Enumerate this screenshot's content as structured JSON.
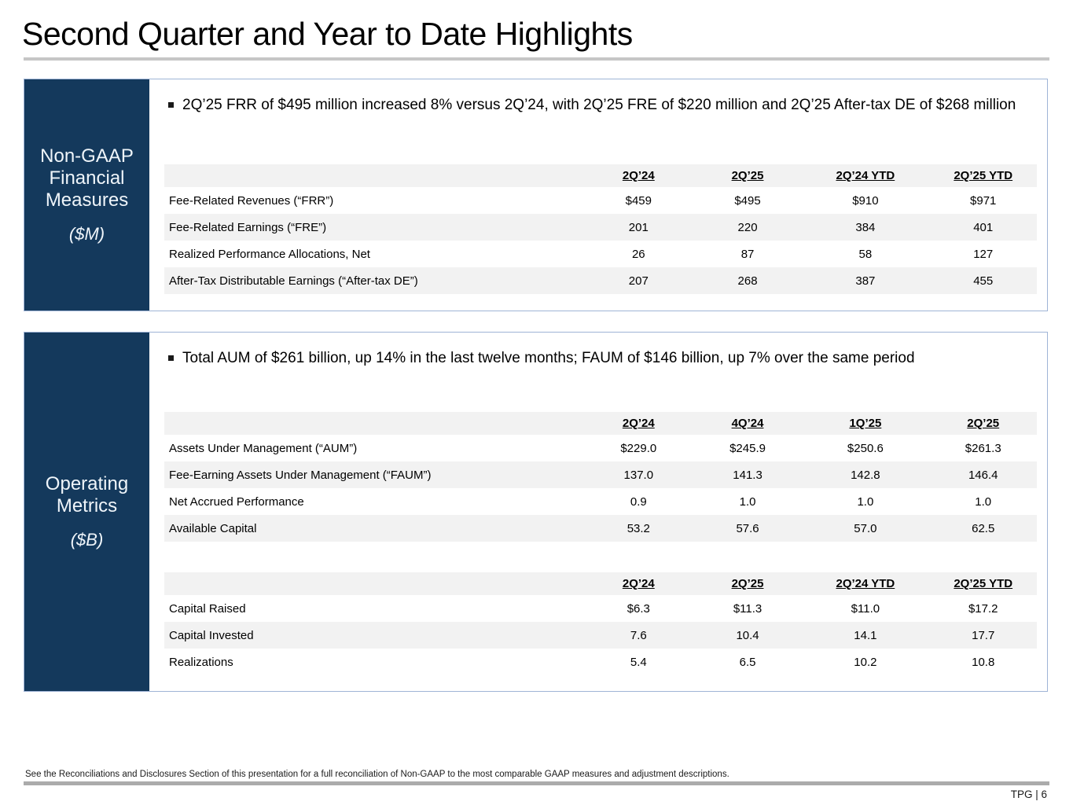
{
  "slide": {
    "title": "Second Quarter and Year to Date Highlights",
    "footnote": "See the Reconciliations and Disclosures Section of this presentation for a full reconciliation of Non-GAAP to the most comparable GAAP measures and adjustment descriptions.",
    "page_label": "TPG | 6"
  },
  "colors": {
    "navy_sidebar": "#14395C",
    "panel_border": "#9FB4D6",
    "row_stripe": "#F2F2F2",
    "divider_gray": "#C6C6C6"
  },
  "sections": [
    {
      "label_lines": [
        "Non-GAAP",
        "Financial",
        "Measures"
      ],
      "unit": "($M)",
      "bullet": "2Q’25 FRR of $495 million increased 8% versus 2Q’24, with 2Q’25 FRE of $220 million and 2Q’25 After-tax DE of $268 million",
      "tables": [
        {
          "columns": [
            "2Q’24",
            "2Q’25",
            "2Q’24 YTD",
            "2Q’25 YTD"
          ],
          "rows": [
            {
              "label": "Fee-Related Revenues (“FRR”)",
              "values": [
                "$459",
                "$495",
                "$910",
                "$971"
              ]
            },
            {
              "label": "Fee-Related Earnings (“FRE”)",
              "values": [
                "201",
                "220",
                "384",
                "401"
              ]
            },
            {
              "label": "Realized Performance Allocations, Net",
              "values": [
                "26",
                "87",
                "58",
                "127"
              ]
            },
            {
              "label": "After-Tax Distributable Earnings (“After-tax DE”)",
              "values": [
                "207",
                "268",
                "387",
                "455"
              ]
            }
          ]
        }
      ]
    },
    {
      "label_lines": [
        "Operating",
        "Metrics"
      ],
      "unit": "($B)",
      "bullet": "Total AUM of $261 billion, up 14% in the last twelve months; FAUM of $146 billion, up 7% over the same period",
      "tables": [
        {
          "columns": [
            "2Q’24",
            "4Q’24",
            "1Q’25",
            "2Q’25"
          ],
          "rows": [
            {
              "label": "Assets Under Management (“AUM”)",
              "values": [
                "$229.0",
                "$245.9",
                "$250.6",
                "$261.3"
              ]
            },
            {
              "label": "Fee-Earning Assets Under Management (“FAUM”)",
              "values": [
                "137.0",
                "141.3",
                "142.8",
                "146.4"
              ]
            },
            {
              "label": "Net Accrued Performance",
              "values": [
                "0.9",
                "1.0",
                "1.0",
                "1.0"
              ]
            },
            {
              "label": "Available Capital",
              "values": [
                "53.2",
                "57.6",
                "57.0",
                "62.5"
              ]
            }
          ]
        },
        {
          "columns": [
            "2Q’24",
            "2Q’25",
            "2Q’24 YTD",
            "2Q’25 YTD"
          ],
          "rows": [
            {
              "label": "Capital Raised",
              "values": [
                "$6.3",
                "$11.3",
                "$11.0",
                "$17.2"
              ]
            },
            {
              "label": "Capital Invested",
              "values": [
                "7.6",
                "10.4",
                "14.1",
                "17.7"
              ]
            },
            {
              "label": "Realizations",
              "values": [
                "5.4",
                "6.5",
                "10.2",
                "10.8"
              ]
            }
          ]
        }
      ]
    }
  ]
}
